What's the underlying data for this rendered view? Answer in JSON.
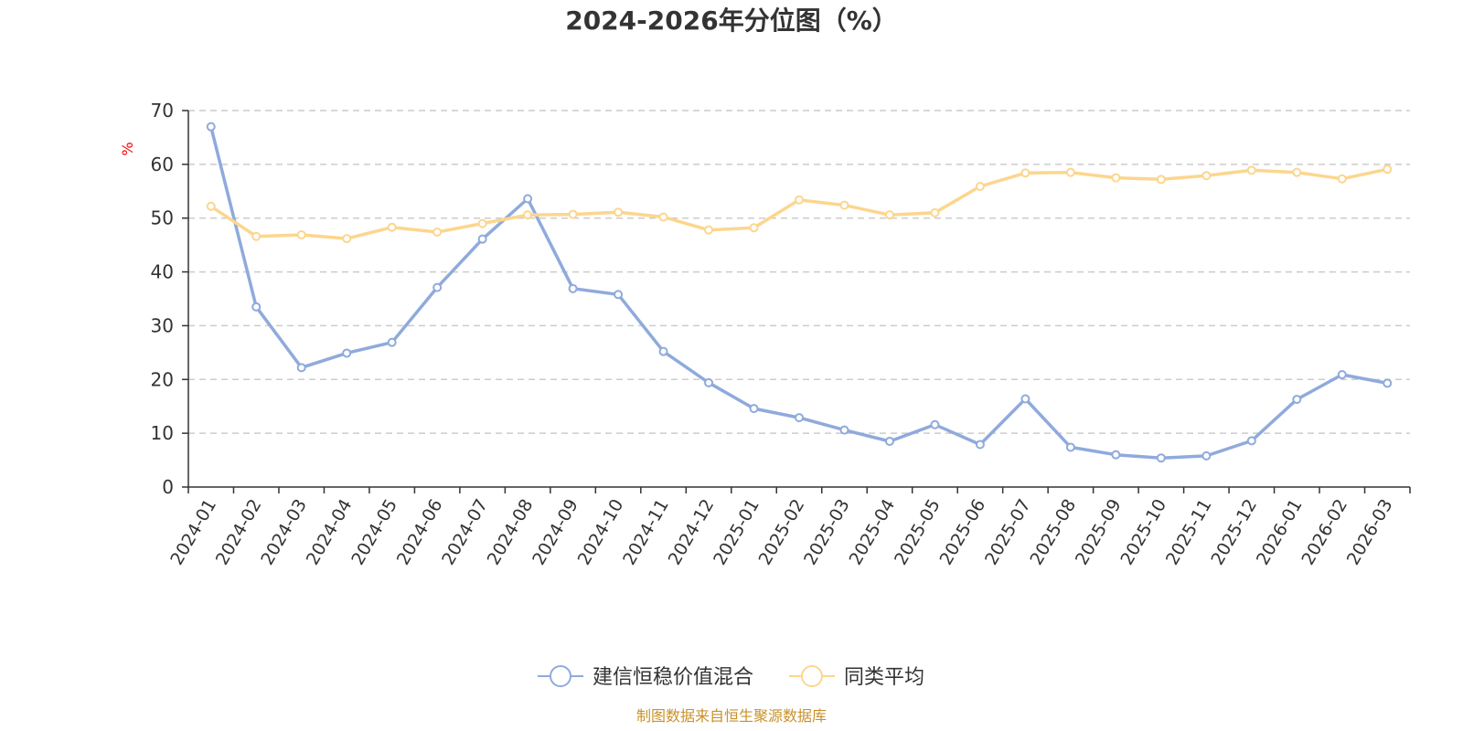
{
  "chart_data": {
    "type": "line",
    "title": "2024-2026年分位图（%）",
    "ylabel": "%",
    "ylim": [
      0,
      70
    ],
    "yticks": [
      0,
      10,
      20,
      30,
      40,
      50,
      60,
      70
    ],
    "grid": true,
    "legend_position": "bottom",
    "categories": [
      "2024-01",
      "2024-02",
      "2024-03",
      "2024-04",
      "2024-05",
      "2024-06",
      "2024-07",
      "2024-08",
      "2024-09",
      "2024-10",
      "2024-11",
      "2024-12",
      "2025-01",
      "2025-02",
      "2025-03",
      "2025-04",
      "2025-05",
      "2025-06",
      "2025-07",
      "2025-08",
      "2025-09",
      "2025-10",
      "2025-11",
      "2025-12",
      "2026-01",
      "2026-02",
      "2026-03"
    ],
    "series": [
      {
        "name": "建信恒稳价值混合",
        "color": "#8faadc",
        "values": [
          67,
          33.5,
          22.2,
          24.9,
          26.9,
          37.1,
          46.1,
          53.6,
          36.9,
          35.8,
          25.2,
          19.4,
          14.6,
          12.9,
          10.6,
          8.5,
          11.6,
          7.9,
          16.4,
          7.4,
          6.0,
          5.4,
          5.8,
          8.6,
          16.3,
          20.9,
          19.3
        ]
      },
      {
        "name": "同类平均",
        "color": "#fcd68e",
        "values": [
          52.2,
          46.6,
          46.9,
          46.2,
          48.3,
          47.4,
          49.0,
          50.6,
          50.7,
          51.1,
          50.2,
          47.8,
          48.2,
          53.4,
          52.4,
          50.6,
          51.0,
          55.9,
          58.4,
          58.5,
          57.5,
          57.2,
          57.9,
          58.9,
          58.5,
          57.3,
          59.1
        ]
      }
    ]
  },
  "source": "制图数据来自恒生聚源数据库",
  "colors": {
    "ylabel": "#ff0000",
    "source": "#c8922a",
    "grid": "#cccccc",
    "axis": "#333333"
  }
}
